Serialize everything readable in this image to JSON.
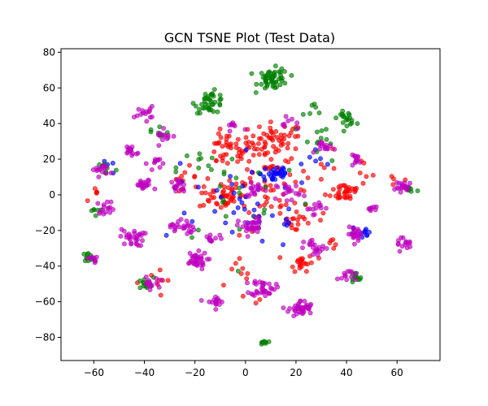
{
  "chart_data": {
    "type": "scatter",
    "title": "GCN TSNE Plot (Test Data)",
    "xlabel": "",
    "ylabel": "",
    "xlim": [
      -73,
      77
    ],
    "ylim": [
      -93,
      82
    ],
    "xticks": [
      -60,
      -40,
      -20,
      0,
      20,
      40,
      60
    ],
    "yticks": [
      -80,
      -60,
      -40,
      -20,
      0,
      20,
      40,
      60,
      80
    ],
    "grid": false,
    "legend": "none",
    "marker_opacity": 0.65,
    "series": [
      {
        "color": "#ff0000",
        "clusters": [
          {
            "cx": 12,
            "cy": 30,
            "r": 9,
            "n": 55
          },
          {
            "cx": -7,
            "cy": 25,
            "r": 8,
            "n": 40
          },
          {
            "cx": -10,
            "cy": 0,
            "r": 7,
            "n": 40
          },
          {
            "cx": 40,
            "cy": 2,
            "r": 5,
            "n": 30
          },
          {
            "cx": 22,
            "cy": -38,
            "r": 4,
            "n": 20
          },
          {
            "cx": 10,
            "cy": 5,
            "r": 20,
            "n": 80
          },
          {
            "cx": 20,
            "cy": -15,
            "r": 6,
            "n": 15
          },
          {
            "cx": -25,
            "cy": 10,
            "r": 5,
            "n": 10
          },
          {
            "cx": 0,
            "cy": -50,
            "r": 10,
            "n": 10
          },
          {
            "cx": -35,
            "cy": -48,
            "r": 8,
            "n": 8
          },
          {
            "cx": 45,
            "cy": 12,
            "r": 5,
            "n": 6
          },
          {
            "cx": 60,
            "cy": 8,
            "r": 3,
            "n": 5
          },
          {
            "cx": -60,
            "cy": 0,
            "r": 3,
            "n": 5
          },
          {
            "cx": 35,
            "cy": -30,
            "r": 5,
            "n": 6
          }
        ]
      },
      {
        "color": "#0000ff",
        "clusters": [
          {
            "cx": 12,
            "cy": 12,
            "r": 5,
            "n": 30
          },
          {
            "cx": 5,
            "cy": -10,
            "r": 18,
            "n": 30
          },
          {
            "cx": -20,
            "cy": -5,
            "r": 20,
            "n": 12
          },
          {
            "cx": 46,
            "cy": -22,
            "r": 4,
            "n": 10
          },
          {
            "cx": -55,
            "cy": 15,
            "r": 3,
            "n": 5
          },
          {
            "cx": 30,
            "cy": 20,
            "r": 5,
            "n": 6
          }
        ]
      },
      {
        "color": "#008000",
        "clusters": [
          {
            "cx": 11,
            "cy": 65,
            "r": 5,
            "n": 55
          },
          {
            "cx": -14,
            "cy": 52,
            "r": 5,
            "n": 40
          },
          {
            "cx": 40,
            "cy": 43,
            "r": 3,
            "n": 20
          },
          {
            "cx": 7,
            "cy": -83,
            "r": 1.2,
            "n": 10
          },
          {
            "cx": -62,
            "cy": -35,
            "r": 2,
            "n": 12
          },
          {
            "cx": -60,
            "cy": -9,
            "r": 2,
            "n": 6
          },
          {
            "cx": -40,
            "cy": -50,
            "r": 3,
            "n": 12
          },
          {
            "cx": 43,
            "cy": -47,
            "r": 3,
            "n": 12
          },
          {
            "cx": -15,
            "cy": 15,
            "r": 10,
            "n": 12
          },
          {
            "cx": 30,
            "cy": 30,
            "r": 10,
            "n": 12
          },
          {
            "cx": 65,
            "cy": 3,
            "r": 3,
            "n": 8
          },
          {
            "cx": -35,
            "cy": 35,
            "r": 4,
            "n": 8
          },
          {
            "cx": 28,
            "cy": 48,
            "r": 5,
            "n": 6
          },
          {
            "cx": -55,
            "cy": 15,
            "r": 3,
            "n": 6
          },
          {
            "cx": 0,
            "cy": 0,
            "r": 25,
            "n": 20
          }
        ]
      },
      {
        "color": "#c000c0",
        "clusters": [
          {
            "cx": 22,
            "cy": -64,
            "r": 4,
            "n": 40
          },
          {
            "cx": 7,
            "cy": -52,
            "r": 4,
            "n": 35
          },
          {
            "cx": -20,
            "cy": -37,
            "r": 4,
            "n": 35
          },
          {
            "cx": -45,
            "cy": -24,
            "r": 4,
            "n": 30
          },
          {
            "cx": -25,
            "cy": -18,
            "r": 4,
            "n": 25
          },
          {
            "cx": 2,
            "cy": -18,
            "r": 4,
            "n": 30
          },
          {
            "cx": 28,
            "cy": -30,
            "r": 4,
            "n": 20
          },
          {
            "cx": -40,
            "cy": 5,
            "r": 3,
            "n": 20
          },
          {
            "cx": -45,
            "cy": 25,
            "r": 3,
            "n": 15
          },
          {
            "cx": -40,
            "cy": 46,
            "r": 3,
            "n": 15
          },
          {
            "cx": -57,
            "cy": 14,
            "r": 3,
            "n": 15
          },
          {
            "cx": -55,
            "cy": -7,
            "r": 3,
            "n": 15
          },
          {
            "cx": -60,
            "cy": -36,
            "r": 2,
            "n": 8
          },
          {
            "cx": -38,
            "cy": -50,
            "r": 3,
            "n": 15
          },
          {
            "cx": -12,
            "cy": -60,
            "r": 3,
            "n": 15
          },
          {
            "cx": 44,
            "cy": -22,
            "r": 3,
            "n": 20
          },
          {
            "cx": 62,
            "cy": -27,
            "r": 3,
            "n": 15
          },
          {
            "cx": 63,
            "cy": 4,
            "r": 3,
            "n": 20
          },
          {
            "cx": 44,
            "cy": 20,
            "r": 2,
            "n": 12
          },
          {
            "cx": 32,
            "cy": 27,
            "r": 3,
            "n": 15
          },
          {
            "cx": 17,
            "cy": 2,
            "r": 4,
            "n": 20
          },
          {
            "cx": 3,
            "cy": 3,
            "r": 3,
            "n": 15
          },
          {
            "cx": -26,
            "cy": 5,
            "r": 3,
            "n": 15
          },
          {
            "cx": -32,
            "cy": 33,
            "r": 3,
            "n": 12
          },
          {
            "cx": -35,
            "cy": 18,
            "r": 3,
            "n": 12
          },
          {
            "cx": -13,
            "cy": -25,
            "r": 3,
            "n": 12
          },
          {
            "cx": 27,
            "cy": -7,
            "r": 3,
            "n": 12
          },
          {
            "cx": 40,
            "cy": -45,
            "r": 3,
            "n": 12
          },
          {
            "cx": 50,
            "cy": -8,
            "r": 2,
            "n": 8
          },
          {
            "cx": 18,
            "cy": 40,
            "r": 3,
            "n": 8
          },
          {
            "cx": -5,
            "cy": 38,
            "r": 3,
            "n": 8
          }
        ]
      }
    ]
  }
}
